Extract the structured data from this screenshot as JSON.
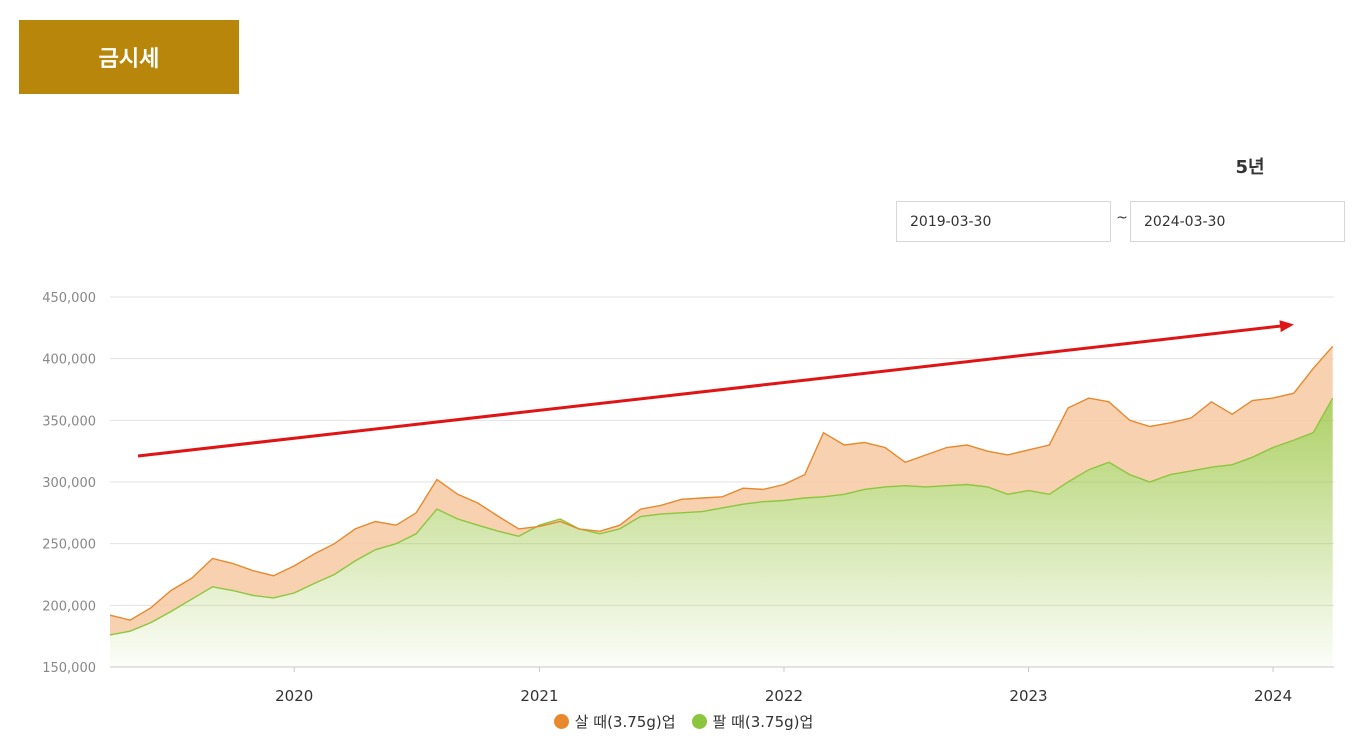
{
  "header": {
    "title": "금시세"
  },
  "period": {
    "label": "5년"
  },
  "date_range": {
    "start": "2019-03-30",
    "separator": "~",
    "end": "2024-03-30"
  },
  "colors": {
    "buy": "#e8892e",
    "sell": "#8cc63f",
    "arrow": "#e01414",
    "title_bg": "#b8860b"
  },
  "chart_data": {
    "type": "area",
    "title": "",
    "xlabel": "",
    "ylabel": "",
    "ylim": [
      150000,
      450000
    ],
    "xlim": [
      "2019-04-01",
      "2024-04-01"
    ],
    "grid": true,
    "legend_position": "bottom",
    "y_ticks": [
      "150,000",
      "200,000",
      "250,000",
      "300,000",
      "350,000",
      "400,000",
      "450,000"
    ],
    "y_tick_values": [
      150000,
      200000,
      250000,
      300000,
      350000,
      400000,
      450000
    ],
    "x_ticks": [
      "2020",
      "2021",
      "2022",
      "2023",
      "2024"
    ],
    "x_tick_values": [
      "2020-01-01",
      "2021-01-01",
      "2022-01-01",
      "2023-01-01",
      "2024-01-01"
    ],
    "series": [
      {
        "name": "살 때(3.75g)업",
        "color": "#e8892e",
        "points": [
          [
            "2019-04-01",
            192000
          ],
          [
            "2019-05-01",
            188000
          ],
          [
            "2019-06-01",
            198000
          ],
          [
            "2019-07-01",
            212000
          ],
          [
            "2019-08-01",
            222000
          ],
          [
            "2019-09-01",
            238000
          ],
          [
            "2019-10-01",
            234000
          ],
          [
            "2019-11-01",
            228000
          ],
          [
            "2019-12-01",
            224000
          ],
          [
            "2020-01-01",
            232000
          ],
          [
            "2020-02-01",
            242000
          ],
          [
            "2020-03-01",
            250000
          ],
          [
            "2020-04-01",
            262000
          ],
          [
            "2020-05-01",
            268000
          ],
          [
            "2020-06-01",
            265000
          ],
          [
            "2020-07-01",
            275000
          ],
          [
            "2020-08-01",
            302000
          ],
          [
            "2020-09-01",
            290000
          ],
          [
            "2020-10-01",
            283000
          ],
          [
            "2020-11-01",
            272000
          ],
          [
            "2020-12-01",
            262000
          ],
          [
            "2021-01-01",
            264000
          ],
          [
            "2021-02-01",
            268000
          ],
          [
            "2021-03-01",
            262000
          ],
          [
            "2021-04-01",
            260000
          ],
          [
            "2021-05-01",
            265000
          ],
          [
            "2021-06-01",
            278000
          ],
          [
            "2021-07-01",
            281000
          ],
          [
            "2021-08-01",
            286000
          ],
          [
            "2021-09-01",
            287000
          ],
          [
            "2021-10-01",
            288000
          ],
          [
            "2021-11-01",
            295000
          ],
          [
            "2021-12-01",
            294000
          ],
          [
            "2022-01-01",
            298000
          ],
          [
            "2022-02-01",
            306000
          ],
          [
            "2022-03-01",
            340000
          ],
          [
            "2022-04-01",
            330000
          ],
          [
            "2022-05-01",
            332000
          ],
          [
            "2022-06-01",
            328000
          ],
          [
            "2022-07-01",
            316000
          ],
          [
            "2022-08-01",
            322000
          ],
          [
            "2022-09-01",
            328000
          ],
          [
            "2022-10-01",
            330000
          ],
          [
            "2022-11-01",
            325000
          ],
          [
            "2022-12-01",
            322000
          ],
          [
            "2023-01-01",
            326000
          ],
          [
            "2023-02-01",
            330000
          ],
          [
            "2023-03-01",
            360000
          ],
          [
            "2023-04-01",
            368000
          ],
          [
            "2023-05-01",
            365000
          ],
          [
            "2023-06-01",
            350000
          ],
          [
            "2023-07-01",
            345000
          ],
          [
            "2023-08-01",
            348000
          ],
          [
            "2023-09-01",
            352000
          ],
          [
            "2023-10-01",
            365000
          ],
          [
            "2023-11-01",
            355000
          ],
          [
            "2023-12-01",
            366000
          ],
          [
            "2024-01-01",
            368000
          ],
          [
            "2024-02-01",
            372000
          ],
          [
            "2024-03-01",
            392000
          ],
          [
            "2024-03-30",
            410000
          ]
        ]
      },
      {
        "name": "팔 때(3.75g)업",
        "color": "#8cc63f",
        "points": [
          [
            "2019-04-01",
            176000
          ],
          [
            "2019-05-01",
            179000
          ],
          [
            "2019-06-01",
            186000
          ],
          [
            "2019-07-01",
            195000
          ],
          [
            "2019-08-01",
            205000
          ],
          [
            "2019-09-01",
            215000
          ],
          [
            "2019-10-01",
            212000
          ],
          [
            "2019-11-01",
            208000
          ],
          [
            "2019-12-01",
            206000
          ],
          [
            "2020-01-01",
            210000
          ],
          [
            "2020-02-01",
            218000
          ],
          [
            "2020-03-01",
            225000
          ],
          [
            "2020-04-01",
            236000
          ],
          [
            "2020-05-01",
            245000
          ],
          [
            "2020-06-01",
            250000
          ],
          [
            "2020-07-01",
            258000
          ],
          [
            "2020-08-01",
            278000
          ],
          [
            "2020-09-01",
            270000
          ],
          [
            "2020-10-01",
            265000
          ],
          [
            "2020-11-01",
            260000
          ],
          [
            "2020-12-01",
            256000
          ],
          [
            "2021-01-01",
            265000
          ],
          [
            "2021-02-01",
            270000
          ],
          [
            "2021-03-01",
            262000
          ],
          [
            "2021-04-01",
            258000
          ],
          [
            "2021-05-01",
            262000
          ],
          [
            "2021-06-01",
            272000
          ],
          [
            "2021-07-01",
            274000
          ],
          [
            "2021-08-01",
            275000
          ],
          [
            "2021-09-01",
            276000
          ],
          [
            "2021-10-01",
            279000
          ],
          [
            "2021-11-01",
            282000
          ],
          [
            "2021-12-01",
            284000
          ],
          [
            "2022-01-01",
            285000
          ],
          [
            "2022-02-01",
            287000
          ],
          [
            "2022-03-01",
            288000
          ],
          [
            "2022-04-01",
            290000
          ],
          [
            "2022-05-01",
            294000
          ],
          [
            "2022-06-01",
            296000
          ],
          [
            "2022-07-01",
            297000
          ],
          [
            "2022-08-01",
            296000
          ],
          [
            "2022-09-01",
            297000
          ],
          [
            "2022-10-01",
            298000
          ],
          [
            "2022-11-01",
            296000
          ],
          [
            "2022-12-01",
            290000
          ],
          [
            "2023-01-01",
            293000
          ],
          [
            "2023-02-01",
            290000
          ],
          [
            "2023-03-01",
            300000
          ],
          [
            "2023-04-01",
            310000
          ],
          [
            "2023-05-01",
            316000
          ],
          [
            "2023-06-01",
            306000
          ],
          [
            "2023-07-01",
            300000
          ],
          [
            "2023-08-01",
            306000
          ],
          [
            "2023-09-01",
            309000
          ],
          [
            "2023-10-01",
            312000
          ],
          [
            "2023-11-01",
            314000
          ],
          [
            "2023-12-01",
            320000
          ],
          [
            "2024-01-01",
            328000
          ],
          [
            "2024-02-01",
            334000
          ],
          [
            "2024-03-01",
            340000
          ],
          [
            "2024-03-30",
            368000
          ]
        ]
      }
    ]
  }
}
